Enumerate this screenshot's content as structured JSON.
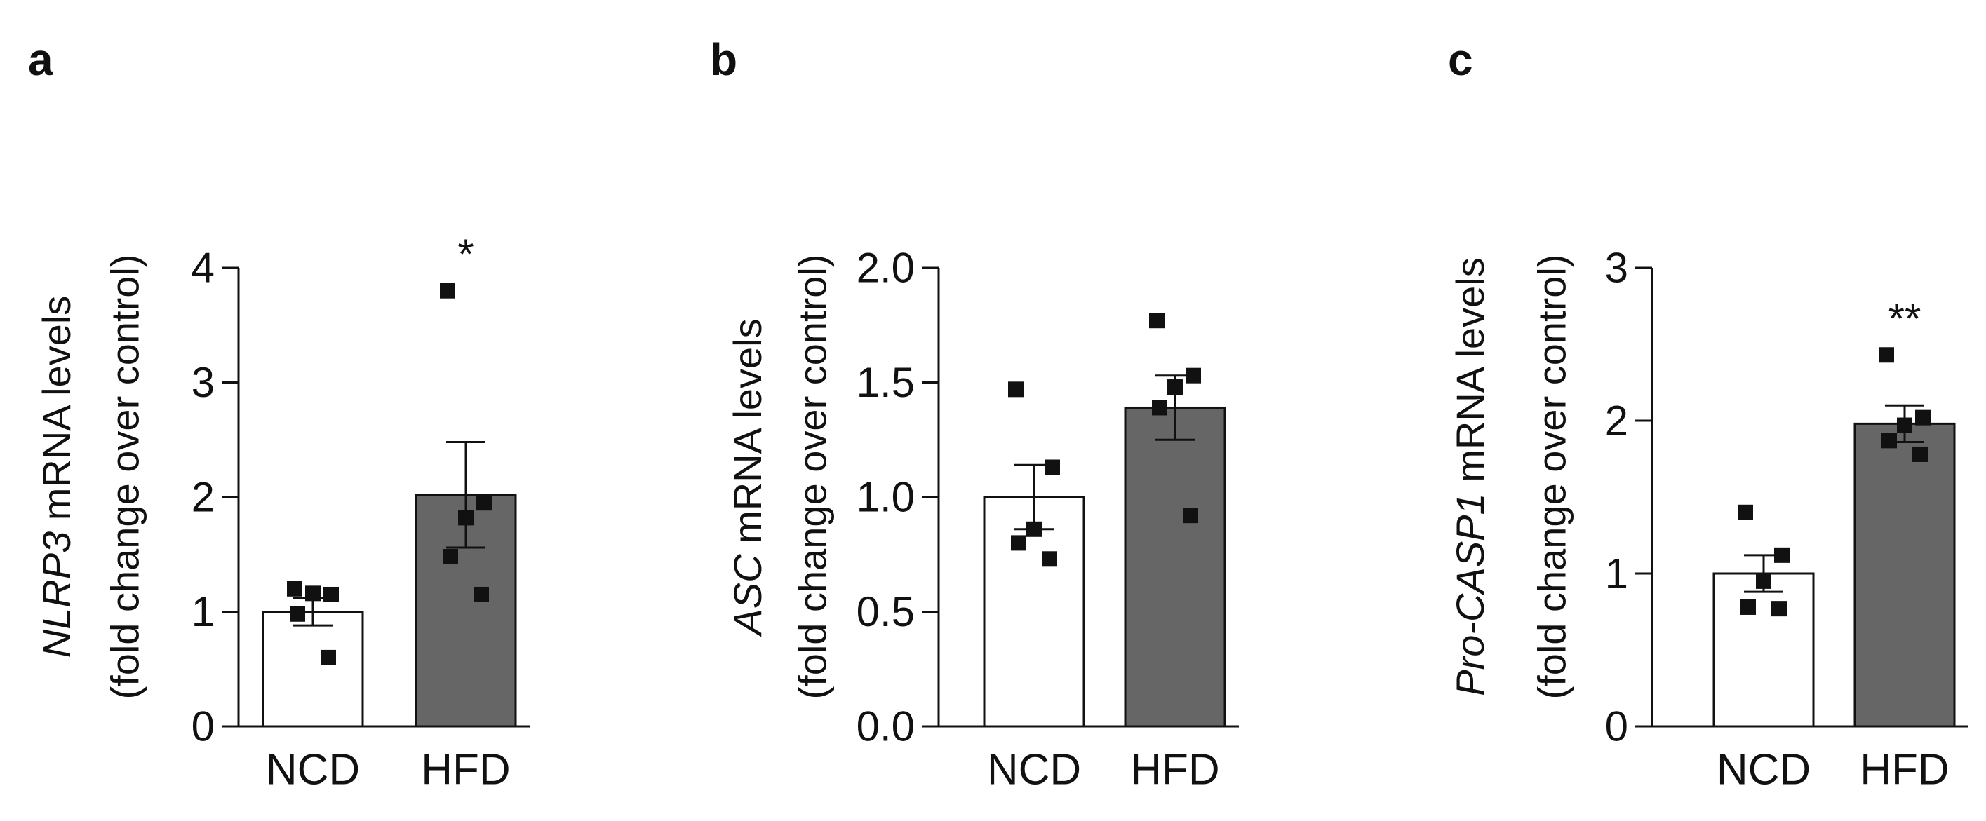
{
  "colors": {
    "ncd_fill": "#ffffff",
    "hfd_fill": "#666666",
    "stroke": "#111111",
    "point": "#111111"
  },
  "chart_data": [
    {
      "panel": "a",
      "type": "bar",
      "ylabel_gene": "NLRP3",
      "ylabel_rest": " mRNA levels",
      "ylabel_line2": "(fold change over control)",
      "categories": [
        "NCD",
        "HFD"
      ],
      "values": [
        1.0,
        2.02
      ],
      "sem": [
        0.12,
        0.46
      ],
      "points": [
        [
          1.2,
          1.15,
          1.16,
          0.98,
          0.6
        ],
        [
          3.8,
          1.95,
          1.82,
          1.48,
          1.15
        ]
      ],
      "ylim": [
        0,
        4
      ],
      "yticks": [
        "0",
        "1",
        "2",
        "3",
        "4"
      ],
      "significance": [
        "",
        "*"
      ]
    },
    {
      "panel": "b",
      "type": "bar",
      "ylabel_gene": "ASC",
      "ylabel_rest": " mRNA levels",
      "ylabel_line2": "(fold change over control)",
      "categories": [
        "NCD",
        "HFD"
      ],
      "values": [
        1.0,
        1.39
      ],
      "sem": [
        0.14,
        0.14
      ],
      "points": [
        [
          1.47,
          1.13,
          0.86,
          0.8,
          0.73
        ],
        [
          1.77,
          1.53,
          1.48,
          1.39,
          0.92
        ]
      ],
      "ylim": [
        0,
        2
      ],
      "yticks": [
        "0.0",
        "0.5",
        "1.0",
        "1.5",
        "2.0"
      ],
      "significance": [
        "",
        ""
      ]
    },
    {
      "panel": "c",
      "type": "bar",
      "ylabel_gene": "Pro-CASP1",
      "ylabel_rest": " mRNA levels",
      "ylabel_line2": "(fold change over control)",
      "categories": [
        "NCD",
        "HFD"
      ],
      "values": [
        1.0,
        1.98
      ],
      "sem": [
        0.12,
        0.12
      ],
      "points": [
        [
          1.4,
          1.12,
          0.95,
          0.78,
          0.77
        ],
        [
          2.43,
          2.02,
          1.97,
          1.87,
          1.78
        ]
      ],
      "ylim": [
        0,
        3
      ],
      "yticks": [
        "0",
        "1",
        "2",
        "3"
      ],
      "significance": [
        "",
        "**"
      ]
    }
  ]
}
